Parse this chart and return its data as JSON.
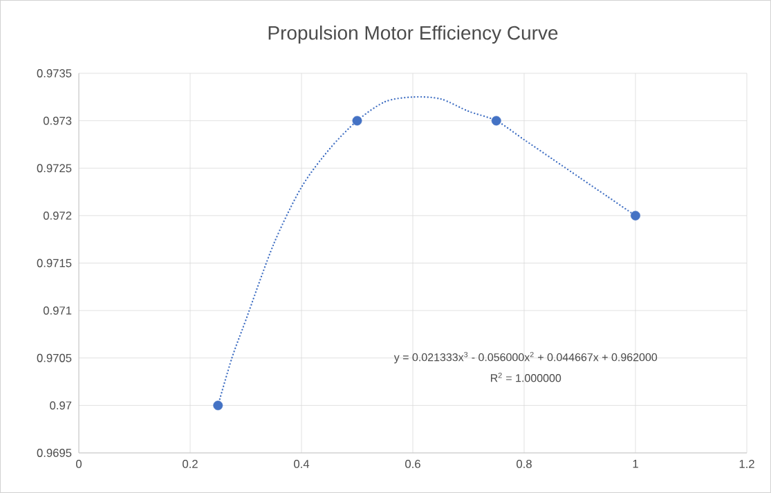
{
  "chart_data": {
    "type": "scatter",
    "title": "Propulsion Motor Efficiency Curve",
    "series": [
      {
        "type": "scatter",
        "color": "#4472c4",
        "marker": "circle",
        "x": [
          0.25,
          0.5,
          0.75,
          1
        ],
        "values": [
          0.97,
          0.973,
          0.973,
          0.972
        ]
      },
      {
        "type": "line",
        "color": "#4472c4",
        "marker": "none",
        "line_style": "dotted",
        "x": [
          0.25,
          0.275,
          0.3,
          0.35,
          0.4,
          0.45,
          0.5,
          0.55,
          0.6,
          0.65,
          0.7,
          0.75,
          0.8,
          0.85,
          0.9,
          0.95,
          1
        ],
        "values": [
          0.97,
          0.9705,
          0.9709,
          0.9717,
          0.9723,
          0.9727,
          0.973,
          0.9732,
          0.97325,
          0.97323,
          0.9731,
          0.973,
          0.9728,
          0.9726,
          0.9724,
          0.9722,
          0.972
        ]
      }
    ],
    "xlim": [
      0,
      1.2
    ],
    "xticks": [
      0,
      0.2,
      0.4,
      0.6,
      0.8,
      1,
      1.2
    ],
    "ylim": [
      0.9695,
      0.9735
    ],
    "yticks": [
      0.9695,
      0.97,
      0.9705,
      0.971,
      0.9715,
      0.972,
      0.9725,
      0.973,
      0.9735
    ],
    "grid": true,
    "annotations": [
      "y = 0.021333x$^{3}$ - 0.056000x$^{2}$ + 0.044667x + 0.962000",
      "R$^{2}$ = 1.000000"
    ]
  }
}
